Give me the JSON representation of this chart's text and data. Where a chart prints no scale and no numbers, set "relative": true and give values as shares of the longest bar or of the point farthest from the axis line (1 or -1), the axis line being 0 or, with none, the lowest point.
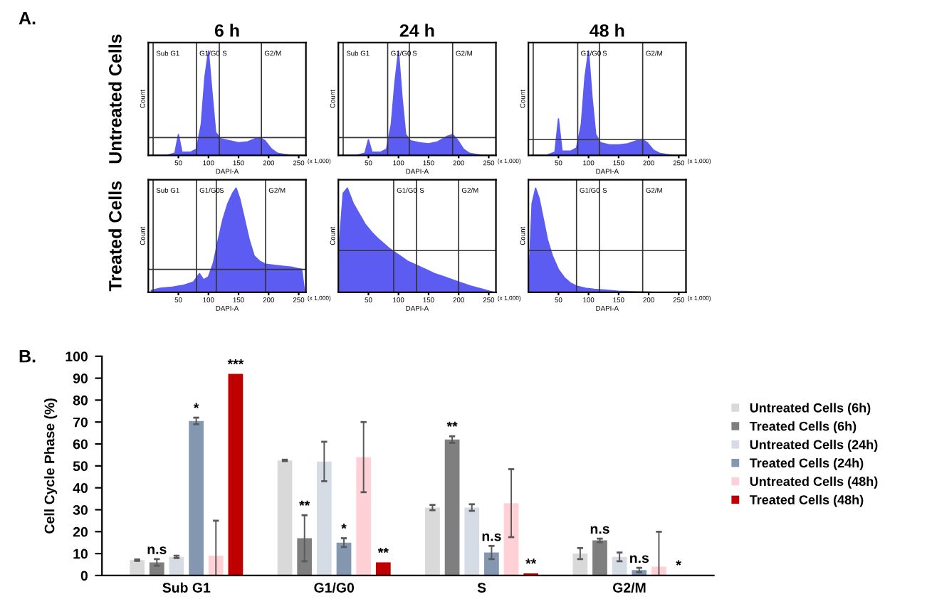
{
  "chart_data": [
    {
      "type": "area",
      "relative": true,
      "title": "6 h",
      "xlabel": "DAPI-A",
      "ylabel": "Count",
      "color": "#5c5cf2",
      "xlim": [
        0,
        262
      ],
      "xticks": [
        50,
        100,
        150,
        200,
        250
      ],
      "tick_labels": "x",
      "x": [
        5,
        30,
        44,
        50,
        56,
        70,
        80,
        88,
        94,
        100,
        106,
        112,
        120,
        135,
        150,
        165,
        178,
        186,
        194,
        205,
        215,
        225,
        240,
        258
      ],
      "values": [
        0,
        0,
        0.02,
        0.2,
        0.03,
        0.03,
        0.06,
        0.3,
        0.75,
        1.0,
        0.6,
        0.22,
        0.16,
        0.14,
        0.12,
        0.13,
        0.16,
        0.17,
        0.14,
        0.06,
        0.02,
        0.01,
        0,
        0
      ],
      "ref_lines": [
        {
          "axis": "x",
          "value": 8,
          "label": "Sub G1"
        },
        {
          "axis": "x",
          "value": 80,
          "label": "G1/G0"
        },
        {
          "axis": "x",
          "value": 118,
          "label": "S"
        },
        {
          "axis": "x",
          "value": 188,
          "label": "G2/M"
        },
        {
          "axis": "y",
          "value": 0.17
        }
      ],
      "annotations": [
        "A.",
        "Untreated Cells",
        "(x 1,000)"
      ]
    },
    {
      "type": "area",
      "relative": true,
      "title": "24 h",
      "xlabel": "DAPI-A",
      "ylabel": "Count",
      "color": "#5c5cf2",
      "xlim": [
        0,
        262
      ],
      "xticks": [
        50,
        100,
        150,
        200,
        250
      ],
      "tick_labels": "x",
      "x": [
        5,
        30,
        44,
        50,
        56,
        70,
        80,
        88,
        94,
        100,
        106,
        112,
        120,
        135,
        150,
        165,
        180,
        190,
        198,
        208,
        218,
        228,
        240,
        258
      ],
      "values": [
        0,
        0,
        0.02,
        0.15,
        0.03,
        0.03,
        0.06,
        0.3,
        0.7,
        1.0,
        0.55,
        0.2,
        0.14,
        0.12,
        0.11,
        0.13,
        0.18,
        0.2,
        0.15,
        0.06,
        0.02,
        0.01,
        0,
        0
      ],
      "ref_lines": [
        {
          "axis": "x",
          "value": 8,
          "label": "Sub G1"
        },
        {
          "axis": "x",
          "value": 82,
          "label": "G1/G0"
        },
        {
          "axis": "x",
          "value": 118,
          "label": "S"
        },
        {
          "axis": "x",
          "value": 190,
          "label": "G2/M"
        },
        {
          "axis": "y",
          "value": 0.17
        }
      ],
      "annotations": [
        "(x 1,000)"
      ]
    },
    {
      "type": "area",
      "relative": true,
      "title": "48 h",
      "xlabel": "DAPI-A",
      "ylabel": "Count",
      "color": "#5c5cf2",
      "xlim": [
        0,
        262
      ],
      "xticks": [
        50,
        100,
        150,
        200,
        250
      ],
      "tick_labels": "x",
      "x": [
        5,
        30,
        44,
        50,
        56,
        70,
        80,
        88,
        94,
        100,
        106,
        112,
        120,
        135,
        150,
        165,
        180,
        190,
        198,
        208,
        218,
        228,
        240,
        258
      ],
      "values": [
        0,
        0,
        0.03,
        0.35,
        0.04,
        0.04,
        0.07,
        0.3,
        0.75,
        1.0,
        0.55,
        0.2,
        0.12,
        0.1,
        0.1,
        0.11,
        0.14,
        0.15,
        0.12,
        0.05,
        0.02,
        0.01,
        0,
        0
      ],
      "ref_lines": [
        {
          "axis": "x",
          "value": 8
        },
        {
          "axis": "x",
          "value": 82,
          "label": "G1/G0"
        },
        {
          "axis": "x",
          "value": 118,
          "label": "S"
        },
        {
          "axis": "x",
          "value": 190,
          "label": "G2/M"
        },
        {
          "axis": "y",
          "value": 0.15
        }
      ],
      "annotations": [
        "(x 1,000)"
      ]
    },
    {
      "type": "area",
      "relative": true,
      "xlabel": "DAPI-A",
      "ylabel": "Count",
      "color": "#5c5cf2",
      "xlim": [
        0,
        262
      ],
      "xticks": [
        50,
        100,
        150,
        200,
        250
      ],
      "tick_labels": "x",
      "x": [
        5,
        20,
        40,
        60,
        75,
        85,
        92,
        100,
        108,
        116,
        124,
        132,
        140,
        146,
        152,
        160,
        168,
        176,
        185,
        195,
        210,
        225,
        240,
        255,
        260
      ],
      "values": [
        0.02,
        0.04,
        0.05,
        0.07,
        0.1,
        0.18,
        0.12,
        0.15,
        0.28,
        0.5,
        0.7,
        0.85,
        0.95,
        1.0,
        0.9,
        0.7,
        0.5,
        0.35,
        0.3,
        0.27,
        0.26,
        0.25,
        0.24,
        0.22,
        0
      ],
      "ref_lines": [
        {
          "axis": "x",
          "value": 8,
          "label": "Sub G1"
        },
        {
          "axis": "x",
          "value": 80,
          "label": "G1/G0"
        },
        {
          "axis": "x",
          "value": 113,
          "label": "S"
        },
        {
          "axis": "x",
          "value": 195,
          "label": "G2/M"
        },
        {
          "axis": "y",
          "value": 0.22
        }
      ],
      "annotations": [
        "Treated Cells",
        "(x 1,000)"
      ]
    },
    {
      "type": "area",
      "relative": true,
      "xlabel": "DAPI-A",
      "ylabel": "Count",
      "color": "#5c5cf2",
      "xlim": [
        0,
        262
      ],
      "xticks": [
        50,
        100,
        150,
        200,
        250
      ],
      "tick_labels": "x",
      "x": [
        2,
        8,
        15,
        25,
        35,
        45,
        55,
        65,
        75,
        85,
        95,
        105,
        115,
        130,
        145,
        160,
        175,
        190,
        205,
        220,
        240,
        258
      ],
      "values": [
        0.5,
        0.95,
        1.0,
        0.85,
        0.75,
        0.65,
        0.58,
        0.52,
        0.47,
        0.42,
        0.38,
        0.34,
        0.3,
        0.26,
        0.22,
        0.18,
        0.15,
        0.12,
        0.09,
        0.06,
        0.03,
        0
      ],
      "ref_lines": [
        {
          "axis": "x",
          "value": 92,
          "label": "G1/G0"
        },
        {
          "axis": "x",
          "value": 130,
          "label": "S"
        },
        {
          "axis": "x",
          "value": 200,
          "label": "G2/M"
        },
        {
          "axis": "y",
          "value": 0.4
        }
      ],
      "annotations": [
        "(x 1,000)"
      ]
    },
    {
      "type": "area",
      "relative": true,
      "xlabel": "DAPI-A",
      "ylabel": "Count",
      "color": "#5c5cf2",
      "xlim": [
        0,
        262
      ],
      "xticks": [
        50,
        100,
        150,
        200,
        250
      ],
      "tick_labels": "x",
      "x": [
        2,
        6,
        12,
        18,
        25,
        32,
        40,
        50,
        60,
        70,
        80,
        95,
        110,
        130,
        150,
        180,
        210,
        258
      ],
      "values": [
        0.3,
        0.85,
        1.0,
        0.9,
        0.7,
        0.5,
        0.35,
        0.22,
        0.14,
        0.09,
        0.06,
        0.04,
        0.03,
        0.02,
        0.01,
        0.005,
        0,
        0
      ],
      "ref_lines": [
        {
          "axis": "x",
          "value": 80,
          "label": "G1/G0"
        },
        {
          "axis": "x",
          "value": 118,
          "label": "S"
        },
        {
          "axis": "x",
          "value": 190,
          "label": "G2/M"
        },
        {
          "axis": "y",
          "value": 0.4
        }
      ],
      "annotations": [
        "(x 1,000)"
      ]
    },
    {
      "type": "bar",
      "ylabel": "Cell Cycle Phase (%)",
      "categories": [
        "Sub G1",
        "G1/G0",
        "S",
        "G2/M"
      ],
      "ylim": [
        0,
        100
      ],
      "yticks": [
        0,
        10,
        20,
        30,
        40,
        50,
        60,
        70,
        80,
        90,
        100
      ],
      "grid": false,
      "legend": "right",
      "annotations": [
        "B."
      ],
      "series": [
        {
          "name": "Untreated Cells (6h)",
          "color": "#d9d9d9",
          "values": [
            7,
            52.5,
            31,
            10
          ],
          "errors": [
            0.3,
            0.3,
            1.2,
            2.5
          ]
        },
        {
          "name": "Treated Cells (6h)",
          "color": "#7f7f7f",
          "values": [
            6,
            17,
            62,
            16
          ],
          "errors": [
            1.5,
            10.5,
            1.5,
            0.8
          ],
          "value_labels": [
            "n.s",
            "**",
            "**",
            "n.s"
          ]
        },
        {
          "name": "Untreated Cells (24h)",
          "color": "#d6dce5",
          "values": [
            8.5,
            52,
            31,
            8.5
          ],
          "errors": [
            0.5,
            9,
            1.5,
            2
          ]
        },
        {
          "name": "Treated Cells (24h)",
          "color": "#8497b0",
          "values": [
            70.5,
            15,
            10.5,
            2.5
          ],
          "errors": [
            1.5,
            2,
            3,
            1
          ],
          "value_labels": [
            "*",
            "*",
            "n.s",
            "n.s"
          ]
        },
        {
          "name": "Untreated Cells (48h)",
          "color": "#ffd0d6",
          "values": [
            9,
            54,
            33,
            4
          ],
          "errors": [
            16,
            16,
            15.5,
            16
          ]
        },
        {
          "name": "Treated Cells (48h)",
          "color": "#c00000",
          "values": [
            92,
            6,
            1,
            0.3
          ],
          "value_labels": [
            "***",
            "**",
            "**",
            "*"
          ]
        }
      ]
    }
  ]
}
